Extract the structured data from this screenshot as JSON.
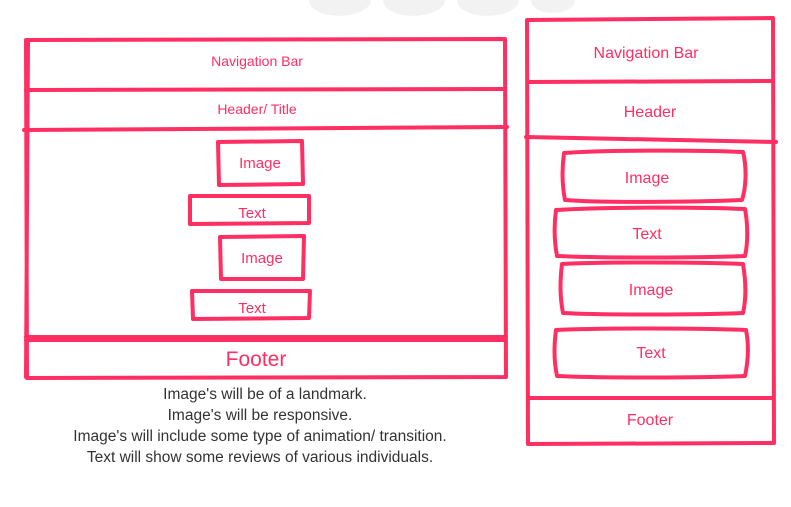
{
  "colors": {
    "sketch": "#ff2e63",
    "notes_text": "#333333"
  },
  "desktop_wireframe": {
    "navigation": "Navigation Bar",
    "header": "Header/ Title",
    "content": [
      {
        "kind": "image",
        "label": "Image"
      },
      {
        "kind": "text",
        "label": "Text"
      },
      {
        "kind": "image",
        "label": "Image"
      },
      {
        "kind": "text",
        "label": "Text"
      }
    ],
    "footer": "Footer"
  },
  "mobile_wireframe": {
    "navigation": "Navigation Bar",
    "header": "Header",
    "content": [
      {
        "kind": "image",
        "label": "Image"
      },
      {
        "kind": "text",
        "label": "Text"
      },
      {
        "kind": "image",
        "label": "Image"
      },
      {
        "kind": "text",
        "label": "Text"
      }
    ],
    "footer": "Footer"
  },
  "notes": [
    "Image's will be of a landmark.",
    "Image's will be responsive.",
    "Image's will include some type of animation/ transition.",
    "Text will show some reviews of various individuals."
  ]
}
